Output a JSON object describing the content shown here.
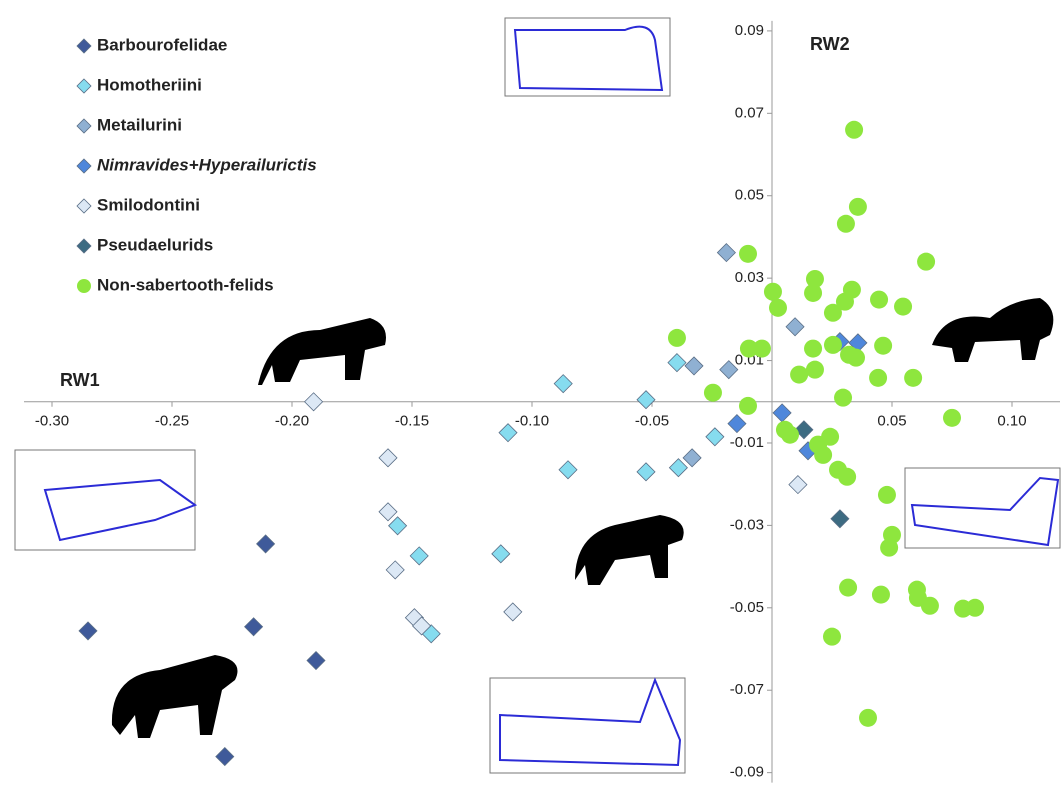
{
  "chart_data": {
    "type": "scatter",
    "xlabel": "RW1",
    "ylabel": "RW2",
    "xlim": [
      -0.32,
      0.12
    ],
    "ylim": [
      -0.093,
      0.0975
    ],
    "xticks": [
      {
        "value": -0.3,
        "label": "-0.30"
      },
      -0.25,
      {
        "value": -0.2,
        "label": "-0.20"
      },
      -0.15,
      {
        "value": -0.1,
        "label": "-0.10"
      },
      -0.05,
      0.05,
      {
        "value": 0.1,
        "label": "0.10"
      }
    ],
    "yticks": [
      0.09,
      0.07,
      0.05,
      0.03,
      0.01,
      -0.01,
      -0.03,
      -0.05,
      -0.07,
      -0.09
    ],
    "legend": "top-left",
    "series": [
      {
        "name": "Barbourofelidae",
        "color": "#3f5a9a",
        "marker": "diamond",
        "x": [
          -0.285,
          -0.211,
          -0.216,
          -0.19,
          -0.228
        ],
        "values": [
          -0.0556,
          -0.0345,
          -0.0546,
          -0.0628,
          -0.0861
        ]
      },
      {
        "name": "Homotheriini",
        "color": "#86dcef",
        "marker": "diamond",
        "x": [
          -0.087,
          -0.11,
          -0.085,
          -0.113,
          -0.0525,
          -0.0525,
          -0.0396,
          -0.0238,
          -0.147,
          -0.156,
          -0.142,
          -0.039
        ],
        "values": [
          0.0044,
          -0.0075,
          -0.0165,
          -0.0369,
          0.0005,
          -0.017,
          0.0095,
          -0.0085,
          -0.0374,
          -0.0301,
          -0.0563,
          -0.016
        ]
      },
      {
        "name": "Metailurini",
        "color": "#8fb0d2",
        "marker": "diamond",
        "x": [
          -0.019,
          0.0096,
          -0.0325,
          -0.0333,
          -0.018
        ],
        "values": [
          0.0362,
          0.0182,
          0.0087,
          -0.0136,
          0.0078
        ]
      },
      {
        "name": "Nimravides+Hyperailurictis",
        "color": "#4f87db",
        "marker": "diamond",
        "x": [
          -0.0146,
          0.0042,
          0.015,
          0.0283,
          0.0358
        ],
        "values": [
          -0.0053,
          -0.0027,
          -0.0119,
          0.0146,
          0.0143
        ]
      },
      {
        "name": "Smilodontini",
        "color": "#dce8f5",
        "marker": "diamond",
        "x": [
          -0.191,
          -0.16,
          -0.16,
          -0.157,
          -0.149,
          -0.146,
          -0.108,
          0.0108
        ],
        "values": [
          0,
          -0.0136,
          -0.0267,
          -0.0408,
          -0.0524,
          -0.0544,
          -0.051,
          -0.0201
        ]
      },
      {
        "name": "Pseudaelurids",
        "color": "#3d6b82",
        "marker": "diamond",
        "x": [
          0.0133,
          0.0283
        ],
        "values": [
          -0.0068,
          -0.0284
        ]
      },
      {
        "name": "Non-sabertooth-felids",
        "color": "#8ee63e",
        "marker": "circle",
        "x": [
          0.0342,
          0.0358,
          0.0308,
          0.0642,
          -0.01,
          0.0004,
          0.0025,
          0.0179,
          0.0171,
          0.0333,
          0.0304,
          0.0446,
          0.0546,
          0.0254,
          -0.0396,
          -0.0096,
          -0.0042,
          0.0171,
          0.0254,
          0.0463,
          0.0321,
          0.035,
          0.0179,
          0.0113,
          0.0442,
          0.0588,
          -0.0246,
          0.0296,
          -0.01,
          0.075,
          0.0054,
          0.0075,
          0.0192,
          0.0242,
          0.0213,
          0.0275,
          0.0313,
          0.0479,
          0.05,
          0.0488,
          0.0317,
          0.0454,
          0.0604,
          0.0608,
          0.0658,
          0.0796,
          0.0846,
          0.025,
          0.04
        ],
        "values": [
          0.066,
          0.0473,
          0.0432,
          0.034,
          0.0359,
          0.0267,
          0.0228,
          0.0298,
          0.0264,
          0.0272,
          0.0243,
          0.0248,
          0.0231,
          0.0216,
          0.0155,
          0.0129,
          0.0129,
          0.0129,
          0.0138,
          0.0136,
          0.0114,
          0.0107,
          0.0078,
          0.0066,
          0.0058,
          0.0058,
          0.0022,
          0.001,
          -0.001,
          -0.0039,
          -0.0068,
          -0.008,
          -0.0104,
          -0.0085,
          -0.0129,
          -0.0165,
          -0.0182,
          -0.0226,
          -0.0323,
          -0.0354,
          -0.0451,
          -0.0468,
          -0.0456,
          -0.0476,
          -0.0495,
          -0.0502,
          -0.05,
          -0.057,
          -0.0767
        ]
      }
    ]
  }
}
